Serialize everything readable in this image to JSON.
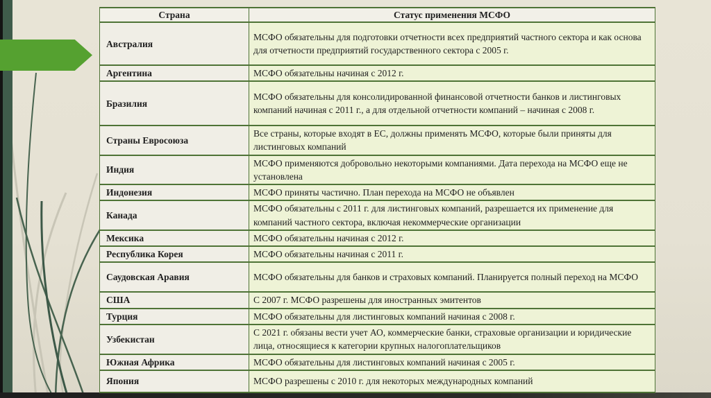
{
  "slide": {
    "table": {
      "headers": {
        "country": "Страна",
        "status": "Статус применения МСФО"
      },
      "rows": [
        {
          "country": "Австралия",
          "status": "МСФО обязательны для подготовки отчетности всех предприятий частного сектора и как основа для отчетности предприятий государственного сектора с 2005 г."
        },
        {
          "country": "Аргентина",
          "status": "МСФО обязательны начиная с 2012 г."
        },
        {
          "country": "Бразилия",
          "status": "МСФО обязательны для консолидированной финансовой отчетности банков и листинговых компаний начиная с 2011 г., а для отдельной отчетности компаний – начиная с 2008 г."
        },
        {
          "country": "Страны Евросоюза",
          "status": "Все страны, которые входят в ЕС, должны применять МСФО, которые были приняты для листинговых компаний"
        },
        {
          "country": "Индия",
          "status": "МСФО применяются добровольно некоторыми компаниями. Дата перехода на МСФО еще не установлена"
        },
        {
          "country": "Индонезия",
          "status": "МСФО приняты частично. План перехода на МСФО не объявлен"
        },
        {
          "country": "Канада",
          "status": "МСФО обязательны с 2011 г. для листинговых компаний, разрешается их применение для компаний частного сектора, включая некоммерческие организации"
        },
        {
          "country": "Мексика",
          "status": "МСФО обязательны начиная с 2012 г."
        },
        {
          "country": "Республика Корея",
          "status": "МСФО обязательны начиная с 2011 г."
        },
        {
          "country": "Саудовская Аравия",
          "status": "МСФО обязательны для банков и страховых компаний. Планируется полный переход на МСФО"
        },
        {
          "country": "США",
          "status": "С 2007 г. МСФО разрешены для иностранных эмитентов"
        },
        {
          "country": "Турция",
          "status": "МСФО обязательны для листинговых компаний начиная с 2008 г."
        },
        {
          "country": "Узбекистан",
          "status": "С 2021 г. обязаны вести учет АО, коммерческие банки, страховые организации и юридические лица, относящиеся к категории крупных налогоплательщиков"
        },
        {
          "country": "Южная Африка",
          "status": "МСФО обязательны для листинговых компаний начиная с 2005 г."
        },
        {
          "country": "Япония",
          "status": "МСФО разрешены с 2010 г. для некоторых международных компаний"
        }
      ]
    },
    "icons": {
      "arrow_marker": "green-arrow-right-marker",
      "grass": "grass-stems-decoration"
    },
    "colors": {
      "background": "#e5e1d3",
      "arrow_green": "#55a130",
      "table_border": "#4e7336",
      "header_bg": "#f2f0e8",
      "country_cell_bg": "#f0eee6",
      "status_cell_bg": "#eef3d6",
      "left_black_strip": "#141414",
      "left_green_strip": "#3f5c4b",
      "bottom_bar": "#1e1e1e",
      "grass_dark": "#47634f",
      "grass_light": "#c8c5b6",
      "text": "#1f1f1f"
    }
  }
}
